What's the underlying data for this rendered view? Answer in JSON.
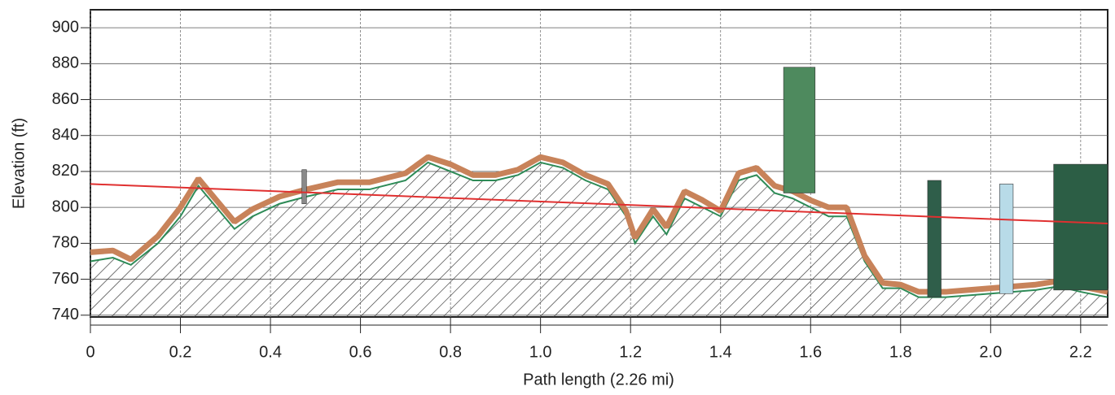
{
  "chart_data": {
    "type": "elevation-profile",
    "xlabel": "Path length (2.26 mi)",
    "ylabel": "Elevation (ft)",
    "xlim": [
      0,
      2.26
    ],
    "ylim": [
      739,
      910
    ],
    "xticks": [
      {
        "value": 0,
        "label": "0"
      },
      0.2,
      0.4,
      0.6,
      0.8,
      {
        "value": 1,
        "label": "1.0"
      },
      1.2,
      1.4,
      1.6,
      1.8,
      {
        "value": 2,
        "label": "2.0"
      },
      2.2
    ],
    "yticks": [
      740,
      760,
      780,
      800,
      820,
      840,
      860,
      880,
      900
    ],
    "grid": true,
    "x": [
      0,
      0.05,
      0.09,
      0.15,
      0.2,
      0.24,
      0.28,
      0.32,
      0.36,
      0.42,
      0.48,
      0.55,
      0.62,
      0.7,
      0.75,
      0.8,
      0.85,
      0.9,
      0.95,
      1.0,
      1.05,
      1.1,
      1.15,
      1.19,
      1.21,
      1.25,
      1.28,
      1.32,
      1.36,
      1.4,
      1.44,
      1.48,
      1.52,
      1.56,
      1.6,
      1.64,
      1.68,
      1.72,
      1.76,
      1.8,
      1.84,
      1.9,
      2.0,
      2.1,
      2.15,
      2.2,
      2.26
    ],
    "series": [
      {
        "color": "#2e8b57",
        "values": [
          770,
          772,
          768,
          780,
          795,
          812,
          800,
          788,
          795,
          802,
          806,
          810,
          810,
          815,
          825,
          820,
          815,
          815,
          818,
          825,
          822,
          815,
          810,
          795,
          780,
          795,
          785,
          805,
          800,
          795,
          815,
          818,
          808,
          805,
          800,
          795,
          795,
          770,
          755,
          755,
          750,
          750,
          752,
          754,
          756,
          753,
          750
        ]
      },
      {
        "color": "#c8835a",
        "values": [
          775,
          776,
          771,
          784,
          800,
          816,
          804,
          792,
          799,
          806,
          810,
          814,
          814,
          819,
          828,
          824,
          818,
          818,
          821,
          828,
          825,
          818,
          813,
          798,
          783,
          799,
          789,
          809,
          804,
          798,
          819,
          822,
          812,
          809,
          804,
          800,
          800,
          773,
          758,
          757,
          753,
          753,
          755,
          757,
          759,
          756,
          753
        ]
      }
    ],
    "line_of_sight": {
      "color": "#e03030",
      "x": [
        0,
        2.26
      ],
      "values": [
        813,
        791
      ]
    },
    "obstacles": [
      {
        "x": [
          0.47,
          0.48
        ],
        "top": 821,
        "color": "#8a8a8a"
      },
      {
        "x": [
          1.54,
          1.61
        ],
        "top": 878,
        "color": "#4e8a5e"
      },
      {
        "x": [
          1.86,
          1.89
        ],
        "top": 815,
        "color": "#2f5e4a"
      },
      {
        "x": [
          2.02,
          2.05
        ],
        "top": 813,
        "color": "#b8dbe8"
      },
      {
        "x": [
          2.14,
          2.26
        ],
        "top": 824,
        "color": "#2c5e45"
      }
    ]
  }
}
